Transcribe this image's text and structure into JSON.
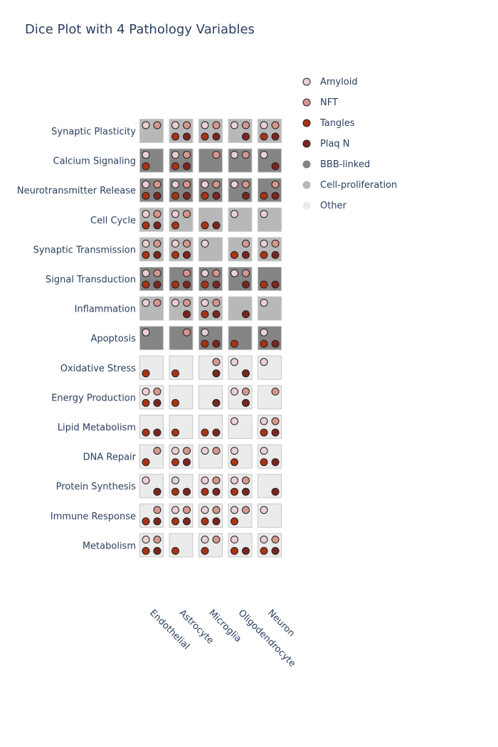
{
  "chart_data": {
    "type": "dice",
    "title": "Dice Plot with 4 Pathology Variables",
    "cell_types": [
      "Endothelial",
      "Astrocyte",
      "Microglia",
      "Oligodendrocyte",
      "Neuron"
    ],
    "pathways": [
      {
        "name": "Synaptic Plasticity",
        "group": "Cell-proliferation"
      },
      {
        "name": "Calcium Signaling",
        "group": "BBB-linked"
      },
      {
        "name": "Neurotransmitter Release",
        "group": "BBB-linked"
      },
      {
        "name": "Cell Cycle",
        "group": "Cell-proliferation"
      },
      {
        "name": "Synaptic Transmission",
        "group": "Cell-proliferation"
      },
      {
        "name": "Signal Transduction",
        "group": "BBB-linked"
      },
      {
        "name": "Inflammation",
        "group": "Cell-proliferation"
      },
      {
        "name": "Apoptosis",
        "group": "BBB-linked"
      },
      {
        "name": "Oxidative Stress",
        "group": "Other"
      },
      {
        "name": "Energy Production",
        "group": "Other"
      },
      {
        "name": "Lipid Metabolism",
        "group": "Other"
      },
      {
        "name": "DNA Repair",
        "group": "Other"
      },
      {
        "name": "Protein Synthesis",
        "group": "Other"
      },
      {
        "name": "Immune Response",
        "group": "Other"
      },
      {
        "name": "Metabolism",
        "group": "Other"
      }
    ],
    "variables": [
      {
        "name": "Amyloid",
        "color": "#eacfd3"
      },
      {
        "name": "NFT",
        "color": "#d4968e"
      },
      {
        "name": "Tangles",
        "color": "#a83315"
      },
      {
        "name": "Plaq N",
        "color": "#7a2620"
      }
    ],
    "groups": [
      {
        "name": "BBB-linked",
        "color": "#858585"
      },
      {
        "name": "Cell-proliferation",
        "color": "#b8b8b8"
      },
      {
        "name": "Other",
        "color": "#ebebeb"
      }
    ],
    "presence": [
      [
        [
          1,
          1,
          0,
          0
        ],
        [
          1,
          1,
          1,
          1
        ],
        [
          1,
          1,
          1,
          1
        ],
        [
          1,
          1,
          0,
          1
        ],
        [
          1,
          1,
          1,
          1
        ]
      ],
      [
        [
          1,
          0,
          1,
          0
        ],
        [
          1,
          1,
          1,
          1
        ],
        [
          0,
          1,
          0,
          0
        ],
        [
          1,
          1,
          0,
          0
        ],
        [
          1,
          0,
          0,
          1
        ]
      ],
      [
        [
          1,
          1,
          1,
          1
        ],
        [
          1,
          1,
          1,
          1
        ],
        [
          1,
          1,
          1,
          1
        ],
        [
          1,
          1,
          0,
          1
        ],
        [
          0,
          1,
          1,
          1
        ]
      ],
      [
        [
          1,
          1,
          1,
          1
        ],
        [
          1,
          1,
          1,
          0
        ],
        [
          0,
          0,
          1,
          1
        ],
        [
          1,
          0,
          0,
          0
        ],
        [
          1,
          0,
          0,
          0
        ]
      ],
      [
        [
          1,
          1,
          1,
          1
        ],
        [
          1,
          1,
          1,
          1
        ],
        [
          1,
          0,
          0,
          0
        ],
        [
          0,
          1,
          1,
          1
        ],
        [
          1,
          1,
          1,
          1
        ]
      ],
      [
        [
          1,
          1,
          1,
          1
        ],
        [
          0,
          1,
          1,
          1
        ],
        [
          1,
          1,
          1,
          1
        ],
        [
          1,
          1,
          0,
          1
        ],
        [
          0,
          0,
          1,
          1
        ]
      ],
      [
        [
          1,
          1,
          0,
          0
        ],
        [
          1,
          1,
          0,
          1
        ],
        [
          1,
          1,
          1,
          1
        ],
        [
          0,
          0,
          0,
          1
        ],
        [
          1,
          0,
          0,
          0
        ]
      ],
      [
        [
          1,
          0,
          0,
          0
        ],
        [
          0,
          1,
          0,
          0
        ],
        [
          1,
          0,
          1,
          1
        ],
        [
          0,
          0,
          1,
          0
        ],
        [
          1,
          0,
          1,
          1
        ]
      ],
      [
        [
          0,
          0,
          1,
          0
        ],
        [
          0,
          0,
          1,
          0
        ],
        [
          0,
          1,
          0,
          1
        ],
        [
          1,
          0,
          0,
          1
        ],
        [
          1,
          0,
          0,
          0
        ]
      ],
      [
        [
          1,
          1,
          1,
          1
        ],
        [
          0,
          0,
          1,
          0
        ],
        [
          0,
          0,
          0,
          1
        ],
        [
          1,
          1,
          0,
          1
        ],
        [
          0,
          1,
          0,
          0
        ]
      ],
      [
        [
          0,
          0,
          1,
          1
        ],
        [
          0,
          0,
          1,
          0
        ],
        [
          0,
          0,
          1,
          1
        ],
        [
          1,
          0,
          0,
          0
        ],
        [
          1,
          1,
          1,
          1
        ]
      ],
      [
        [
          0,
          1,
          1,
          0
        ],
        [
          1,
          1,
          1,
          1
        ],
        [
          1,
          1,
          0,
          0
        ],
        [
          1,
          0,
          1,
          0
        ],
        [
          1,
          0,
          1,
          1
        ]
      ],
      [
        [
          1,
          0,
          0,
          1
        ],
        [
          1,
          0,
          1,
          1
        ],
        [
          1,
          1,
          1,
          1
        ],
        [
          1,
          1,
          1,
          1
        ],
        [
          0,
          0,
          0,
          1
        ]
      ],
      [
        [
          0,
          1,
          1,
          1
        ],
        [
          1,
          1,
          1,
          1
        ],
        [
          1,
          1,
          1,
          1
        ],
        [
          1,
          1,
          1,
          0
        ],
        [
          1,
          0,
          0,
          0
        ]
      ],
      [
        [
          1,
          1,
          1,
          1
        ],
        [
          0,
          0,
          1,
          0
        ],
        [
          1,
          1,
          1,
          0
        ],
        [
          1,
          0,
          1,
          1
        ],
        [
          1,
          1,
          1,
          1
        ]
      ]
    ]
  }
}
